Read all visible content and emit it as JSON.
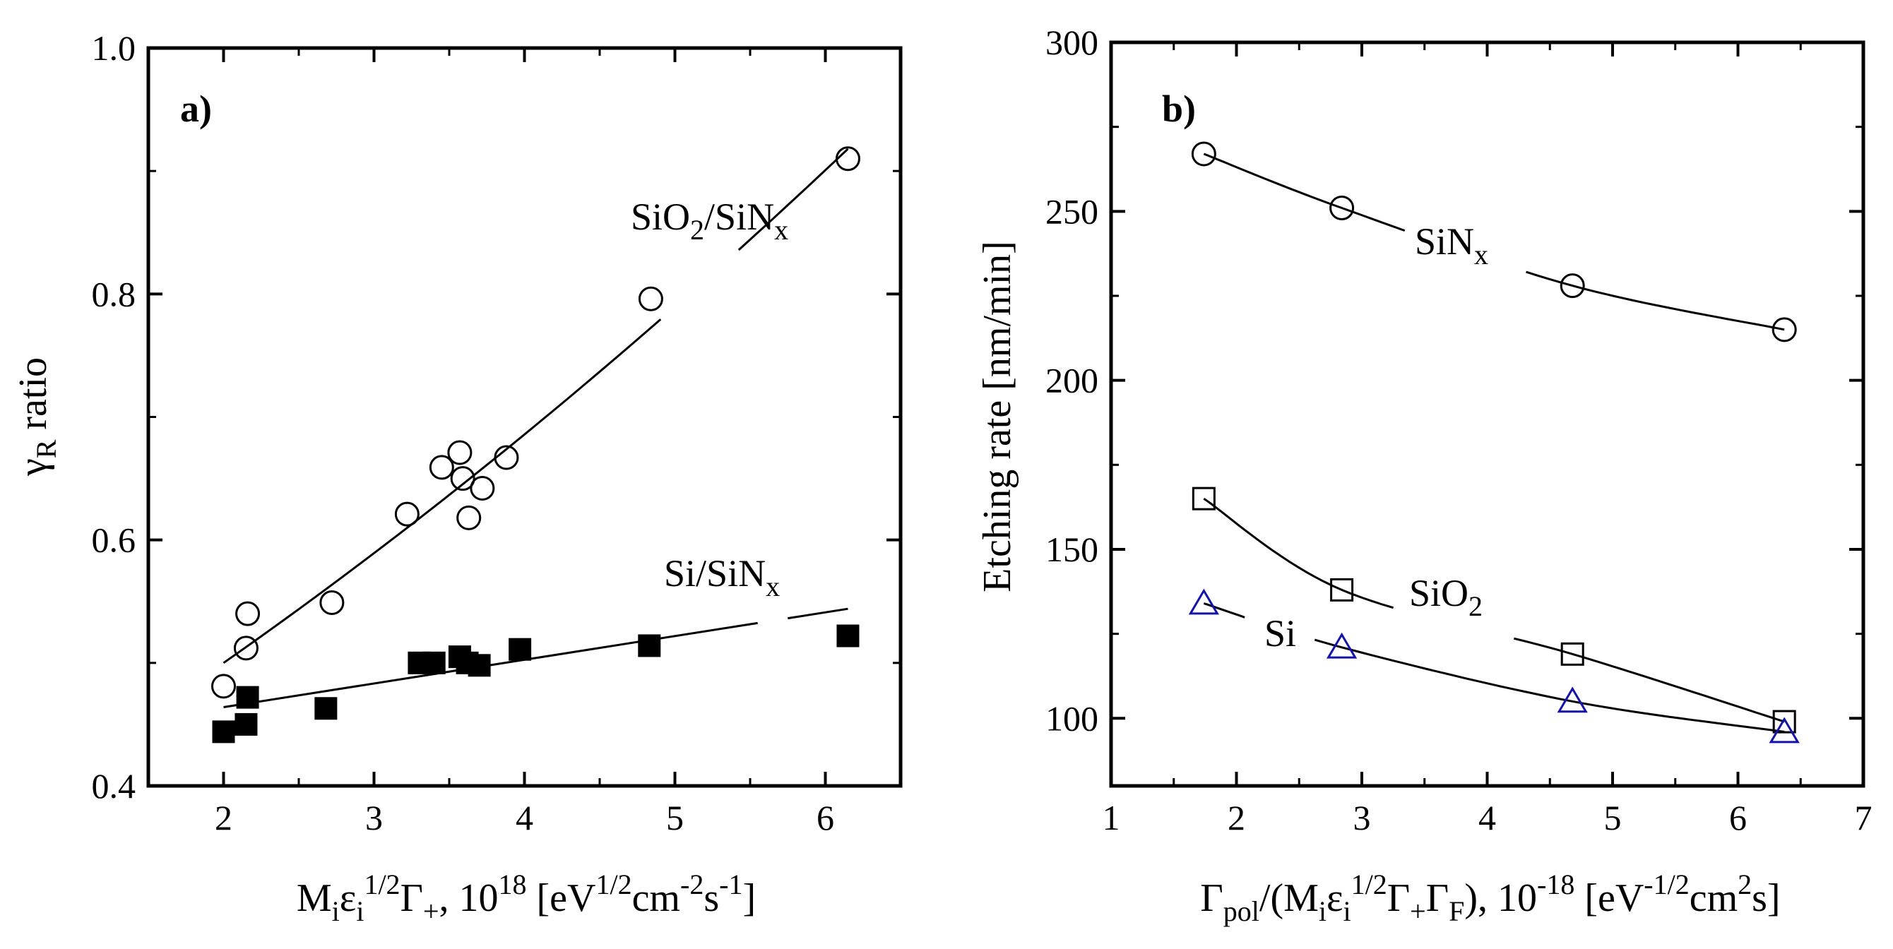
{
  "chart_data": [
    {
      "panel": "a)",
      "type": "scatter",
      "xlabel": "M_i ε_i^{1/2} Γ_+, 10^18 [eV^{1/2} cm^{-2} s^{-1}]",
      "ylabel": "γ_R ratio",
      "xlim": [
        1.5,
        6.5
      ],
      "ylim": [
        0.4,
        1.0
      ],
      "xticks": [
        "2",
        "3",
        "4",
        "5",
        "6"
      ],
      "yticks": [
        "0.4",
        "0.6",
        "0.8",
        "1.0"
      ],
      "series": [
        {
          "name": "SiO2/SiNx",
          "marker": "open-circle",
          "x": [
            2.0,
            2.15,
            2.16,
            2.72,
            3.22,
            3.45,
            3.57,
            3.59,
            3.63,
            3.72,
            3.88,
            4.84,
            6.15
          ],
          "y": [
            0.481,
            0.512,
            0.54,
            0.549,
            0.621,
            0.659,
            0.671,
            0.65,
            0.618,
            0.642,
            0.667,
            0.796,
            0.91
          ],
          "fit": {
            "x0": 2.0,
            "x1": 6.15,
            "y0": 0.5,
            "y1": 0.918
          }
        },
        {
          "name": "Si/SiNx",
          "marker": "filled-square",
          "x": [
            2.0,
            2.15,
            2.16,
            2.68,
            3.3,
            3.4,
            3.57,
            3.62,
            3.7,
            3.97,
            4.83,
            6.15
          ],
          "y": [
            0.444,
            0.45,
            0.472,
            0.463,
            0.5,
            0.5,
            0.505,
            0.5,
            0.498,
            0.511,
            0.514,
            0.522
          ],
          "fit": {
            "x0": 2.0,
            "x1": 6.15,
            "y0": 0.464,
            "y1": 0.544
          }
        }
      ],
      "annotations": {
        "panel_label": "a)",
        "upper_main": "SiO",
        "upper_sub1": "2",
        "upper_mid": "/SiN",
        "upper_sub2": "x",
        "lower_main": "Si/SiN",
        "lower_sub": "x"
      }
    },
    {
      "panel": "b)",
      "type": "scatter",
      "xlabel": "Γ_pol/(M_i ε_i^{1/2} Γ_+ Γ_F), 10^-18 [eV^{-1/2} cm^2 s]",
      "ylabel": "Etching rate [nm/min]",
      "xlim": [
        1,
        7
      ],
      "ylim": [
        80,
        300
      ],
      "xticks": [
        "1",
        "2",
        "3",
        "4",
        "5",
        "6",
        "7"
      ],
      "yticks": [
        "100",
        "150",
        "200",
        "250",
        "300"
      ],
      "series": [
        {
          "name": "SiNx",
          "marker": "open-circle",
          "x": [
            1.74,
            2.84,
            4.68,
            6.37
          ],
          "y": [
            267,
            251,
            228,
            215
          ]
        },
        {
          "name": "SiO2",
          "marker": "open-square",
          "x": [
            1.74,
            2.84,
            4.68,
            6.37
          ],
          "y": [
            165,
            138,
            119,
            99
          ]
        },
        {
          "name": "Si",
          "marker": "open-triangle",
          "color": "#1010c0",
          "x": [
            1.74,
            2.84,
            4.68,
            6.37
          ],
          "y": [
            134,
            121,
            105,
            96
          ]
        }
      ],
      "annotations": {
        "panel_label": "b)",
        "sinx_main": "SiN",
        "sinx_sub": "x",
        "sio2_main": "SiO",
        "sio2_sub": "2",
        "si_label": "Si"
      }
    }
  ],
  "labels": {
    "a_ylabel_main": "γ",
    "a_ylabel_sub": "R",
    "a_ylabel_rest": " ratio",
    "a_xlabel": {
      "p1": "M",
      "s1": "i",
      "p2": "ε",
      "s2": "i",
      "sup1": "1/2",
      "p3": "Γ",
      "s3": "+",
      "p4": ", 10",
      "sup2": "18",
      "p5": " [eV",
      "sup3": "1/2",
      "p6": "cm",
      "sup4": "-2",
      "p7": "s",
      "sup5": "-1",
      "p8": "]"
    },
    "b_ylabel": "Etching rate [nm/min]",
    "b_xlabel": {
      "p1": "Γ",
      "s1": "pol",
      "p2": "/(M",
      "s2": "i",
      "p3": "ε",
      "s3": "i",
      "sup1": "1/2",
      "p4": "Γ",
      "s4": "+",
      "p5": "Γ",
      "s5": "F",
      "p6": "), 10",
      "sup2": "-18",
      "p7": " [eV",
      "sup3": "-1/2",
      "p8": "cm",
      "sup4": "2",
      "p9": "s]"
    }
  }
}
